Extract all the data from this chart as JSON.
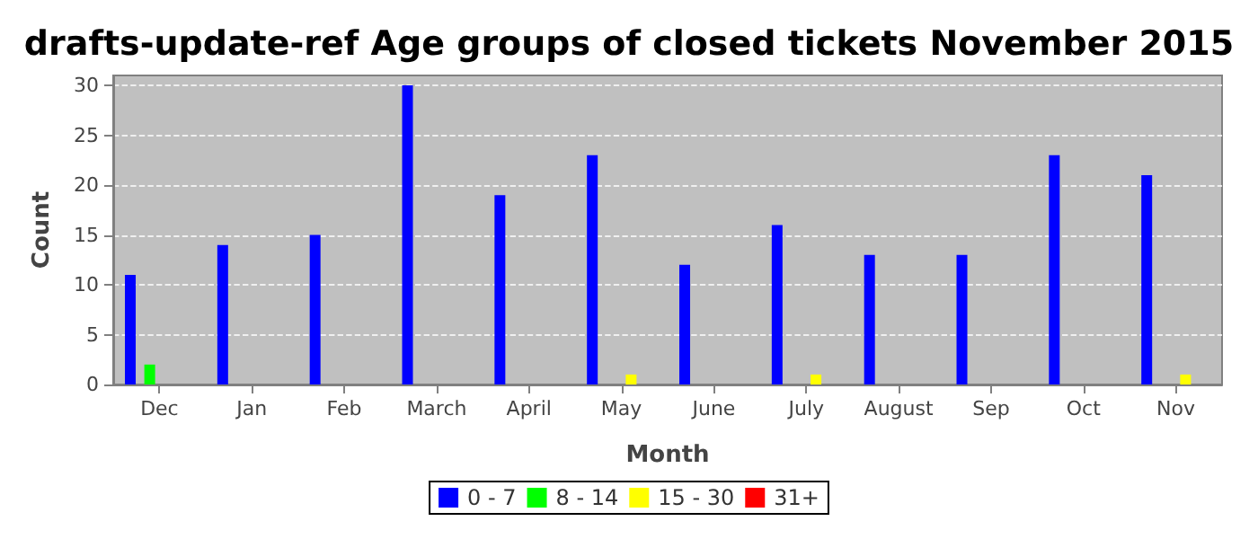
{
  "chart_data": {
    "type": "bar",
    "title": "drafts-update-ref Age groups of closed tickets November 2015",
    "xlabel": "Month",
    "ylabel": "Count",
    "categories": [
      "Dec",
      "Jan",
      "Feb",
      "March",
      "April",
      "May",
      "June",
      "July",
      "August",
      "Sep",
      "Oct",
      "Nov"
    ],
    "series": [
      {
        "name": "0 - 7",
        "color": "#0000ff",
        "values": [
          11,
          14,
          15,
          30,
          19,
          23,
          12,
          16,
          13,
          13,
          23,
          21
        ]
      },
      {
        "name": "8 - 14",
        "color": "#00ff00",
        "values": [
          2,
          0,
          0,
          0,
          0,
          0,
          0,
          0,
          0,
          0,
          0,
          0
        ]
      },
      {
        "name": "15 - 30",
        "color": "#ffff00",
        "values": [
          0,
          0,
          0,
          0,
          0,
          1,
          0,
          1,
          0,
          0,
          0,
          1
        ]
      },
      {
        "name": "31+",
        "color": "#ff0000",
        "values": [
          0,
          0,
          0,
          0,
          0,
          0,
          0,
          0,
          0,
          0,
          0,
          0
        ]
      }
    ],
    "ylim": [
      0,
      31
    ],
    "yticks": [
      0,
      5,
      10,
      15,
      20,
      25,
      30
    ],
    "grid": "y",
    "legend": "bottom"
  }
}
